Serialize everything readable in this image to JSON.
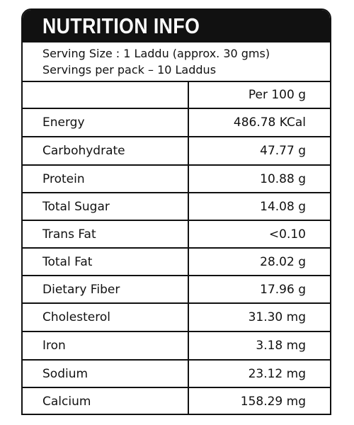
{
  "title": "NUTRITION INFO",
  "serving": {
    "size": "Serving Size : 1 Laddu (approx. 30 gms)",
    "per_pack": "Servings per pack – 10 Laddus"
  },
  "table": {
    "label_header": "",
    "value_header": "Per 100 g",
    "rows": [
      {
        "label": "Energy",
        "value": "486.78 KCal"
      },
      {
        "label": "Carbohydrate",
        "value": "47.77 g"
      },
      {
        "label": "Protein",
        "value": "10.88 g"
      },
      {
        "label": "Total Sugar",
        "value": "14.08 g"
      },
      {
        "label": "Trans Fat",
        "value": "<0.10"
      },
      {
        "label": "Total Fat",
        "value": "28.02 g"
      },
      {
        "label": "Dietary Fiber",
        "value": "17.96 g"
      },
      {
        "label": "Cholesterol",
        "value": "31.30 mg"
      },
      {
        "label": "Iron",
        "value": "3.18 mg"
      },
      {
        "label": "Sodium",
        "value": "23.12 mg"
      },
      {
        "label": "Calcium",
        "value": "158.29 mg"
      }
    ]
  }
}
